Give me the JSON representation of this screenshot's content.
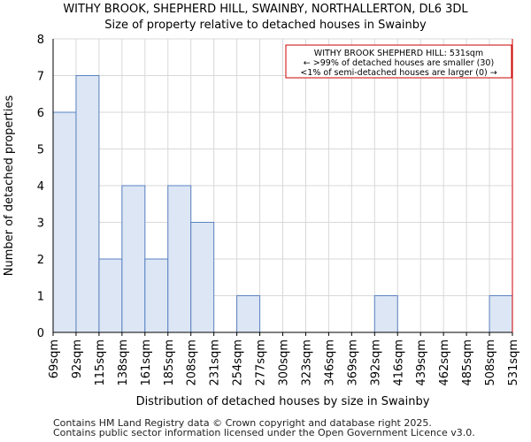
{
  "chart_data": {
    "type": "bar",
    "title": "WITHY BROOK, SHEPHERD HILL, SWAINBY, NORTHALLERTON, DL6 3DL",
    "subtitle": "Size of property relative to detached houses in Swainby",
    "xlabel": "Distribution of detached houses by size in Swainby",
    "ylabel": "Number of detached properties",
    "bin_edges": [
      69,
      92,
      115,
      138,
      161,
      185,
      208,
      231,
      254,
      277,
      300,
      323,
      346,
      369,
      392,
      416,
      439,
      462,
      485,
      508,
      531
    ],
    "tick_labels": [
      "69sqm",
      "92sqm",
      "115sqm",
      "138sqm",
      "161sqm",
      "185sqm",
      "208sqm",
      "231sqm",
      "254sqm",
      "277sqm",
      "300sqm",
      "323sqm",
      "346sqm",
      "369sqm",
      "392sqm",
      "416sqm",
      "439sqm",
      "462sqm",
      "485sqm",
      "508sqm",
      "531sqm"
    ],
    "values": [
      6,
      7,
      2,
      4,
      2,
      4,
      3,
      0,
      1,
      0,
      0,
      0,
      0,
      0,
      1,
      0,
      0,
      0,
      0,
      1
    ],
    "ylim": [
      0,
      8
    ],
    "yticks": [
      0,
      1,
      2,
      3,
      4,
      5,
      6,
      7,
      8
    ],
    "grid": true,
    "marker": {
      "value": 531,
      "color": "#cc0000"
    },
    "annotation": {
      "line1": "WITHY BROOK SHEPHERD HILL: 531sqm",
      "line2": "← >99% of detached houses are smaller (30)",
      "line3": "<1% of semi-detached houses are larger (0) →"
    },
    "colors": {
      "bar_fill": "#dce6f4",
      "bar_edge": "#5a82c0",
      "grid": "#d8d8d8"
    }
  },
  "footer": {
    "line1": "Contains HM Land Registry data © Crown copyright and database right 2025.",
    "line2": "Contains public sector information licensed under the Open Government Licence v3.0."
  }
}
